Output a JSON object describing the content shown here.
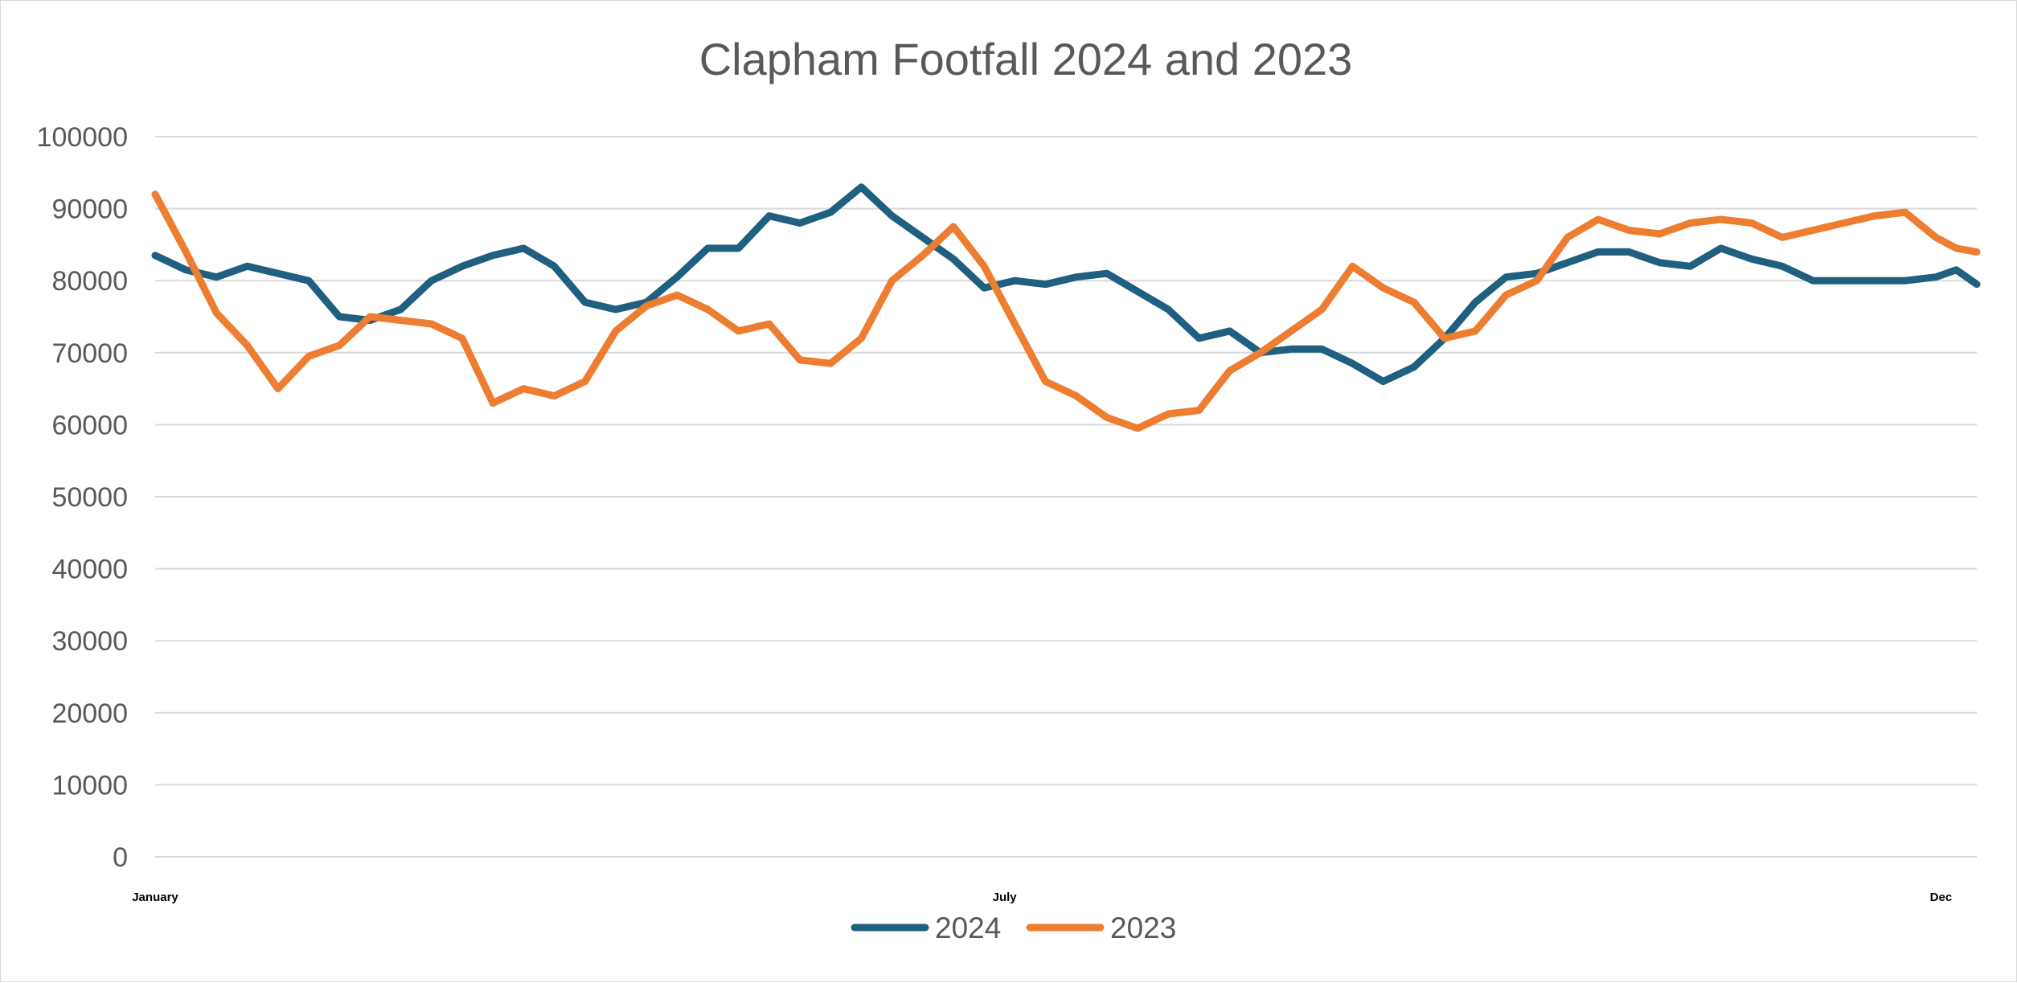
{
  "chart_data": {
    "type": "line",
    "title": "Clapham Footfall 2024 and 2023",
    "xlabel": "",
    "ylabel": "",
    "ylim": [
      0,
      100000
    ],
    "yticks": [
      "0",
      "10000",
      "20000",
      "30000",
      "40000",
      "50000",
      "60000",
      "70000",
      "80000",
      "90000",
      "100000"
    ],
    "grid": true,
    "legend_position": "bottom",
    "x_tick_labels": [
      {
        "label": "January",
        "day": 0
      },
      {
        "label": "July",
        "day": 166
      },
      {
        "label": "Dec",
        "day": 349
      }
    ],
    "x_range": [
      0,
      356
    ],
    "x_unit": "day of year",
    "series": [
      {
        "name": "2024",
        "color": "#1f5f7f",
        "x": [
          0,
          6,
          12,
          18,
          24,
          30,
          36,
          42,
          48,
          54,
          60,
          66,
          72,
          78,
          84,
          90,
          96,
          102,
          108,
          114,
          120,
          126,
          132,
          138,
          144,
          150,
          156,
          162,
          168,
          174,
          180,
          186,
          192,
          198,
          204,
          210,
          216,
          222,
          228,
          234,
          240,
          246,
          252,
          258,
          264,
          270,
          276,
          282,
          288,
          294,
          300,
          306,
          312,
          318,
          324,
          330,
          336,
          342,
          348,
          352,
          356
        ],
        "y": [
          83500,
          81500,
          80500,
          82000,
          81000,
          80000,
          75000,
          74500,
          76000,
          80000,
          82000,
          83500,
          84500,
          82000,
          77000,
          76000,
          77000,
          80500,
          84500,
          84500,
          89000,
          88000,
          89500,
          93000,
          89000,
          86000,
          83000,
          79000,
          80000,
          79500,
          80500,
          81000,
          78500,
          76000,
          72000,
          73000,
          70000,
          70500,
          70500,
          68500,
          66000,
          68000,
          72000,
          77000,
          80500,
          81000,
          82500,
          84000,
          84000,
          82500,
          82000,
          84500,
          83000,
          82000,
          80000,
          80000,
          80000,
          80000,
          80500,
          81500,
          79500
        ],
        "values_note": ""
      },
      {
        "name": "2023",
        "color": "#ed7d31",
        "x": [
          0,
          6,
          12,
          18,
          24,
          30,
          36,
          42,
          48,
          54,
          60,
          66,
          72,
          78,
          84,
          90,
          96,
          102,
          108,
          114,
          120,
          126,
          132,
          138,
          144,
          150,
          156,
          162,
          168,
          174,
          180,
          186,
          192,
          198,
          204,
          210,
          216,
          222,
          228,
          234,
          240,
          246,
          252,
          258,
          264,
          270,
          276,
          282,
          288,
          294,
          300,
          306,
          312,
          318,
          324,
          330,
          336,
          342,
          348,
          352,
          356
        ],
        "y": [
          92000,
          84000,
          75500,
          71000,
          65000,
          69500,
          71000,
          75000,
          74500,
          74000,
          72000,
          63000,
          65000,
          64000,
          66000,
          73000,
          76500,
          78000,
          76000,
          73000,
          74000,
          69000,
          68500,
          72000,
          80000,
          83500,
          87500,
          82000,
          74000,
          66000,
          64000,
          61000,
          59500,
          61500,
          62000,
          67500,
          70000,
          73000,
          76000,
          82000,
          79000,
          77000,
          72000,
          73000,
          78000,
          80000,
          86000,
          88500,
          87000,
          86500,
          88000,
          88500,
          88000,
          86000,
          87000,
          88000,
          89000,
          89500,
          86000,
          84500,
          84000
        ],
        "values_note": ""
      }
    ]
  }
}
